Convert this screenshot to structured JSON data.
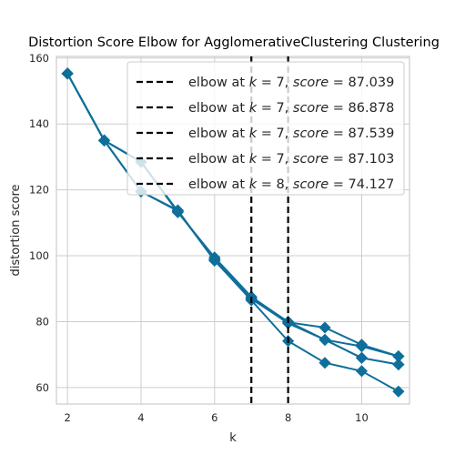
{
  "chart_data": {
    "type": "line",
    "title": "Distortion Score Elbow for AgglomerativeClustering Clustering",
    "xlabel": "k",
    "ylabel": "distortion score",
    "xlim": [
      1.7,
      11.3
    ],
    "ylim": [
      55,
      160.5
    ],
    "xticks": [
      2,
      4,
      6,
      8,
      10
    ],
    "yticks": [
      60,
      80,
      100,
      120,
      140,
      160
    ],
    "grid": true,
    "legend_position": "top-right",
    "line_color": "#0f6f9b",
    "vline_color": "#000000",
    "x": [
      2,
      3,
      4,
      5,
      6,
      7,
      8,
      9,
      10,
      11
    ],
    "series": [
      {
        "values": [
          155.3,
          135.0,
          128.5,
          113.5,
          99.0,
          87.039,
          79.5,
          74.5,
          69.0,
          67.0
        ]
      },
      {
        "values": [
          155.3,
          135.0,
          119.5,
          113.8,
          98.5,
          86.878,
          79.8,
          78.2,
          73.0,
          69.5
        ]
      },
      {
        "values": [
          155.3,
          135.0,
          128.5,
          113.2,
          99.5,
          87.539,
          79.9,
          74.5,
          69.0,
          67.0
        ]
      },
      {
        "values": [
          155.3,
          135.0,
          128.5,
          113.5,
          98.8,
          87.103,
          80.0,
          74.5,
          72.5,
          69.5
        ]
      },
      {
        "values": [
          155.3,
          135.0,
          119.5,
          113.6,
          98.6,
          86.5,
          74.127,
          67.5,
          65.0,
          58.8
        ]
      }
    ],
    "elbows": [
      {
        "label": "elbow at $k = 7$, $score = 87.039$",
        "text_prefix": "elbow at ",
        "k_symbol": "k",
        "k_value": "7",
        "score_symbol": "score",
        "score_value": "87.039",
        "x": 7
      },
      {
        "label": "elbow at $k = 7$, $score = 86.878$",
        "text_prefix": "elbow at ",
        "k_symbol": "k",
        "k_value": "7",
        "score_symbol": "score",
        "score_value": "86.878",
        "x": 7
      },
      {
        "label": "elbow at $k = 7$, $score = 87.539$",
        "text_prefix": "elbow at ",
        "k_symbol": "k",
        "k_value": "7",
        "score_symbol": "score",
        "score_value": "87.539",
        "x": 7
      },
      {
        "label": "elbow at $k = 7$, $score = 87.103$",
        "text_prefix": "elbow at ",
        "k_symbol": "k",
        "k_value": "7",
        "score_symbol": "score",
        "score_value": "87.103",
        "x": 7
      },
      {
        "label": "elbow at $k = 8$, $score = 74.127$",
        "text_prefix": "elbow at ",
        "k_symbol": "k",
        "k_value": "8",
        "score_symbol": "score",
        "score_value": "74.127",
        "x": 8
      }
    ]
  }
}
